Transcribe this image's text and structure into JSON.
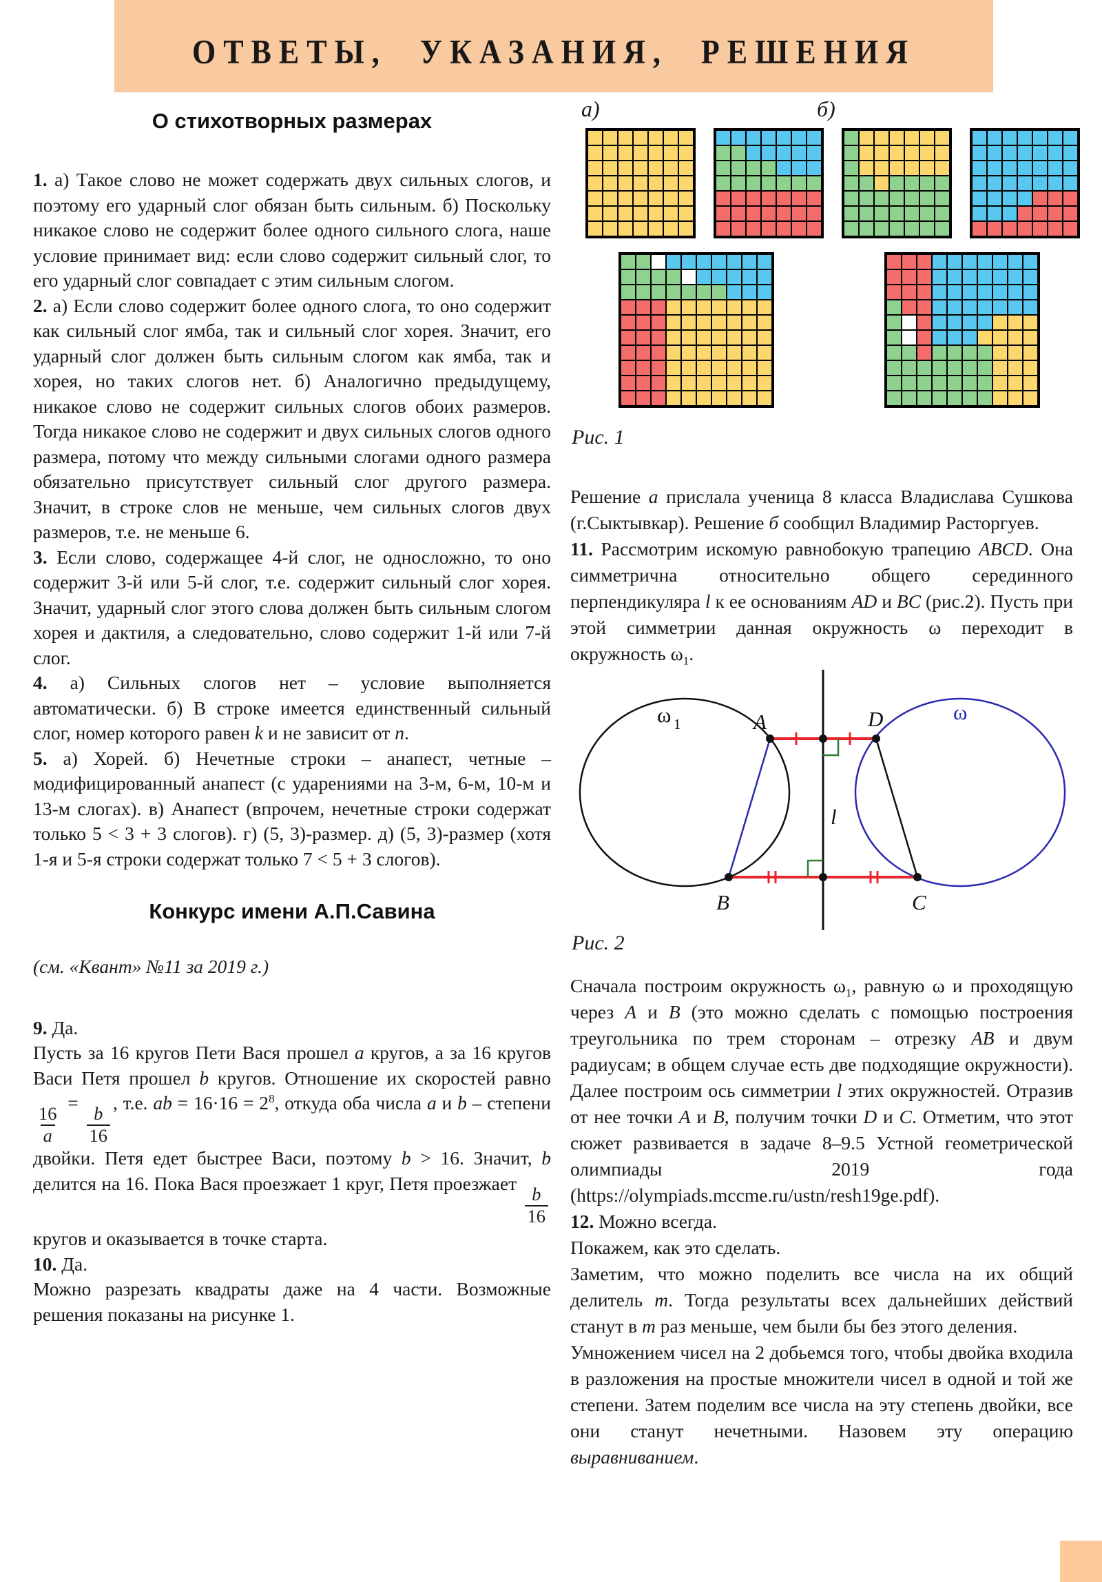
{
  "header": {
    "title": "ОТВЕТЫ, УКАЗАНИЯ, РЕШЕНИЯ",
    "band_color": "#F9C99F"
  },
  "colors": {
    "band": "#F9C99F",
    "corner_tab": "#FDCA9B",
    "fig_segment_red": "#E8262A",
    "fig_right_angle_green": "#2E7D32",
    "fig_circle_blue": "#2A2AB0",
    "fig_circle_black": "#111111"
  },
  "left_column": {
    "title1": "О стихотворных размерах",
    "paragraphs_poetry": [
      [
        {
          "t": "1. ",
          "b": true
        },
        "а) Такое слово не может содержать двух сильных слогов, и поэтому его ударный слог обязан быть сильным. б) Поскольку никакое слово не содержит более одного сильного слога, наше условие принимает вид: если слово содержит сильный слог, то его ударный слог совпадает с этим сильным слогом."
      ],
      [
        {
          "t": "2. ",
          "b": true
        },
        "а) Если слово содержит более одного слога, то оно содержит как сильный слог ямба, так и сильный слог хорея. Значит, его ударный слог должен быть сильным слогом как ямба, так и хорея, но таких слогов нет. б) Аналогично предыдущему, никакое слово не содержит сильных слогов обоих размеров. Тогда никакое слово не содержит и двух сильных слогов одного размера, потому что между сильными слогами одного размера обязательно присутствует сильный слог другого размера. Значит, в строке слов не меньше, чем сильных слогов двух размеров, т.е. не меньше 6."
      ],
      [
        {
          "t": "3. ",
          "b": true
        },
        "Если слово, содержащее 4-й слог, не односложно, то оно содержит 3-й или 5-й слог, т.е. содержит сильный слог хорея. Значит, ударный слог этого слова должен быть сильным слогом хорея и дактиля, а следовательно, слово содержит 1-й или 7-й слог."
      ],
      [
        {
          "t": "4. ",
          "b": true
        },
        "а) Сильных слогов нет – условие выполняется автоматически. б) В строке имеется единственный сильный слог, номер которого равен ",
        {
          "t": "k",
          "i": true
        },
        " и не зависит от ",
        {
          "t": "n",
          "i": true
        },
        "."
      ],
      [
        {
          "t": "5. ",
          "b": true
        },
        "а) Хорей. б) Нечетные строки – анапест, четные – модифицированный анапест (с ударениями на 3-м, 6-м, 10-м и 13-м слогах). в) Анапест (впрочем, нечетные строки содержат только 5 < 3 + 3 слогов). г) (5, 3)-размер. д) (5, 3)-размер (хотя 1-я и 5-я строки содержат только 7 < 5 + 3 слогов)."
      ]
    ],
    "title2": "Конкурс имени А.П.Савина",
    "subtitle2": [
      [
        {
          "t": "(см. «Квант» №11 за 2019 г.)",
          "i": true
        }
      ]
    ],
    "paragraphs_savin": [
      [
        {
          "t": "9. ",
          "b": true
        },
        "Да."
      ],
      [
        "Пусть за 16 кругов Пети Вася прошел ",
        {
          "t": "a",
          "i": true
        },
        " кругов, а за 16 кругов Васи Петя прошел ",
        {
          "t": "b",
          "i": true
        },
        " кругов. Отношение их скоростей равно ",
        {
          "frac": {
            "num": {
              "t": "16"
            },
            "den": {
              "t": "a",
              "i": true
            }
          }
        },
        " = ",
        {
          "frac": {
            "num": {
              "t": "b",
              "i": true
            },
            "den": {
              "t": "16"
            }
          }
        },
        ", т.е. ",
        {
          "t": "ab",
          "i": true
        },
        " = 16·16 = 2",
        {
          "t": "8",
          "sup": true
        },
        ", откуда оба числа ",
        {
          "t": "a",
          "i": true
        },
        " и ",
        {
          "t": "b",
          "i": true
        },
        " – степени двойки. Петя едет быстрее Васи, поэтому ",
        {
          "t": "b",
          "i": true
        },
        " > 16. Значит, ",
        {
          "t": "b",
          "i": true
        },
        " делится на 16. Пока Вася проезжает 1 круг, Петя проезжает ",
        {
          "frac": {
            "num": {
              "t": "b",
              "i": true
            },
            "den": {
              "t": "16"
            }
          }
        },
        " кругов и оказывается в точке старта."
      ],
      [
        {
          "t": "10. ",
          "b": true
        },
        "Да."
      ],
      [
        "Можно разрезать квадраты даже на 4 части. Возможные решения показаны на рисунке 1."
      ]
    ]
  },
  "right_column": {
    "figure1": {
      "label_a": "а)",
      "label_b": "б)",
      "caption": "Рис. 1",
      "palette": {
        "Y": "#FBD76E",
        "B": "#58C8F0",
        "G": "#8FD18F",
        "R": "#F46D6B",
        "W": "#FFFFFF"
      },
      "grids_top": [
        {
          "rows": [
            "YYYYYYY",
            "YYYYYYY",
            "YYYYYYY",
            "YYYYYYY",
            "YYYYYYY",
            "YYYYYYY",
            "YYYYYYY"
          ]
        },
        {
          "rows": [
            "BBBBBBB",
            "GGBBBBB",
            "GGGGBBB",
            "GGGGGGG",
            "RRRRRRR",
            "RRRRRRR",
            "RRRRRRR"
          ]
        },
        {
          "rows": [
            "GYYYYYY",
            "GYYYYYY",
            "GYYYYYY",
            "GGYGGGG",
            "GGGGGGG",
            "GGGGGGG",
            "GGGGGGG"
          ]
        },
        {
          "rows": [
            "BBBBBBB",
            "BBBBBBB",
            "BBBBBBB",
            "BBBBBBB",
            "BBBBRRR",
            "BBBRRRR",
            "RRRRRRR"
          ]
        }
      ],
      "grids_bottom": [
        {
          "rows": [
            "GGWBBBBBBB",
            "GGGGWBBBBB",
            "GGGGGGGBBB",
            "RRRYYYYYYY",
            "RRRYYYYYYY",
            "RRRYYYYYYY",
            "RRRYYYYYYY",
            "RRRYYYYYYY",
            "RRRYYYYYYY",
            "RRRYYYYYYY"
          ]
        },
        {
          "rows": [
            "RRRBBBBBBB",
            "RRRBBBBBBB",
            "RRRBBBBBBB",
            "GRRBBBBBBB",
            "GWRBBBBYYY",
            "GWRBBBYYYY",
            "GGRGGGGYYY",
            "GGGGGGGYYY",
            "GGGGGGGYYY",
            "GGGGGGGYYY"
          ]
        }
      ]
    },
    "paragraphs_solution": [
      [
        "Решение ",
        {
          "t": "а",
          "i": true
        },
        " прислала ученица 8 класса Владислава Сушкова (г.Сыктывкар). Решение ",
        {
          "t": "б",
          "i": true
        },
        " сообщил Владимир Расторгуев."
      ],
      [
        {
          "t": "11. ",
          "b": true
        },
        "Рассмотрим искомую равнобокую трапецию ",
        {
          "t": "ABCD",
          "i": true
        },
        ". Она симметрична относительно общего серединного перпендикуляра ",
        {
          "t": "l",
          "i": true
        },
        " к ее основаниям ",
        {
          "t": "AD",
          "i": true
        },
        " и ",
        {
          "t": "BC",
          "i": true
        },
        " (рис.2). Пусть при этой симметрии данная окружность ω переходит в окружность ω",
        {
          "t": "1",
          "sub": true
        },
        "."
      ]
    ],
    "figure2": {
      "caption": "Рис. 2",
      "labels": {
        "A": "A",
        "B": "B",
        "C": "C",
        "D": "D",
        "l": "l",
        "omega": "ω",
        "omega1": "ω",
        "omega1_sub": "1"
      }
    },
    "paragraphs_after": [
      [
        "Сначала построим окружность ω",
        {
          "t": "1",
          "sub": true
        },
        ", равную ω и проходящую через ",
        {
          "t": "A",
          "i": true
        },
        " и ",
        {
          "t": "B",
          "i": true
        },
        " (это можно сделать с помощью построения треугольника по трем сторонам – отрезку ",
        {
          "t": "AB",
          "i": true
        },
        " и двум радиусам; в общем случае есть две подходящие окружности). Далее построим ось симметрии ",
        {
          "t": "l",
          "i": true
        },
        " этих окружностей. Отразив от нее точки ",
        {
          "t": "A",
          "i": true
        },
        " и ",
        {
          "t": "B",
          "i": true
        },
        ", получим точки ",
        {
          "t": "D",
          "i": true
        },
        " и ",
        {
          "t": "C",
          "i": true
        },
        ". Отметим, что этот сюжет развивается в задаче 8–9.5 Устной геометрической олимпиады 2019 года (https://olympiads.mccme.ru/ustn/resh19ge.pdf)."
      ],
      [
        {
          "t": "12. ",
          "b": true
        },
        "Можно всегда."
      ],
      [
        "Покажем, как это сделать."
      ],
      [
        "Заметим, что можно поделить все числа на их общий делитель ",
        {
          "t": "m",
          "i": true
        },
        ". Тогда результаты всех дальнейших действий станут в ",
        {
          "t": "m",
          "i": true
        },
        " раз меньше, чем были бы без этого деления."
      ],
      [
        "Умножением чисел на 2 добьемся того, чтобы двойка входила в разложения на простые множители чисел в одной и той же степени. Затем поделим все числа на эту степень двойки, все они станут нечетными. Назовем эту операцию ",
        {
          "t": "выравниванием",
          "i": true
        },
        "."
      ]
    ]
  }
}
